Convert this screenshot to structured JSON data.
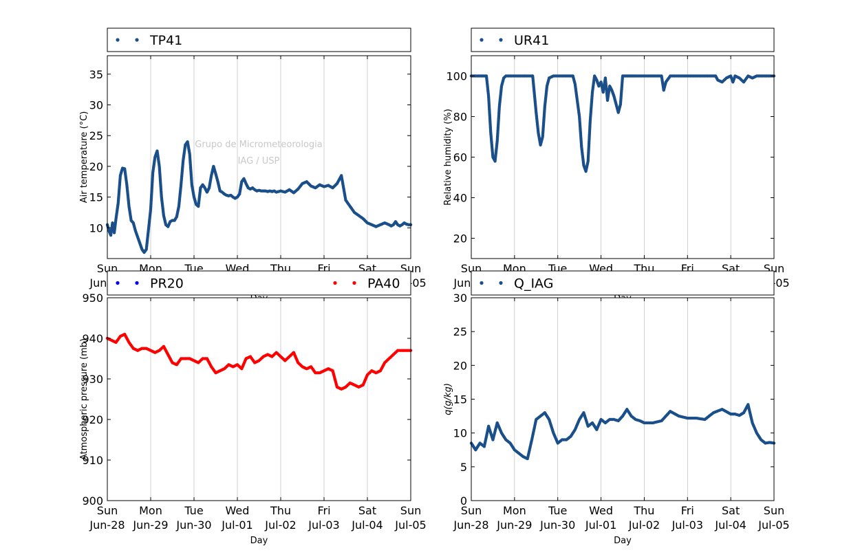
{
  "watermark": [
    "Grupo de Micrometeorologia",
    "IAG / USP"
  ],
  "x_ticks": {
    "days": [
      "Sun",
      "Mon",
      "Tue",
      "Wed",
      "Thu",
      "Fri",
      "Sat",
      "Sun"
    ],
    "dates": [
      "Jun-28",
      "Jun-29",
      "Jun-30",
      "Jul-01",
      "Jul-02",
      "Jul-03",
      "Jul-04",
      "Jul-05"
    ]
  },
  "colors": {
    "navy": "#1a4f8a",
    "blue": "#0000ff",
    "red": "#ff0000",
    "grid": "#b0b0b0"
  },
  "chart_data": [
    {
      "type": "scatter",
      "legend": [
        "TP41"
      ],
      "ylabel": "Air temperature (°C)",
      "xlabel": "Day",
      "ylim": [
        5,
        38
      ],
      "yticks": [
        10,
        15,
        20,
        25,
        30,
        35
      ],
      "grid": "vertical",
      "series": [
        {
          "name": "TP41",
          "color": "#1a4f8a",
          "x": [
            0,
            0.04,
            0.08,
            0.12,
            0.16,
            0.2,
            0.25,
            0.3,
            0.35,
            0.4,
            0.45,
            0.5,
            0.55,
            0.6,
            0.65,
            0.7,
            0.75,
            0.8,
            0.85,
            0.9,
            1.0,
            1.05,
            1.1,
            1.15,
            1.2,
            1.25,
            1.3,
            1.35,
            1.4,
            1.45,
            1.5,
            1.55,
            1.6,
            1.65,
            1.7,
            1.75,
            1.8,
            1.85,
            1.9,
            1.95,
            2.0,
            2.05,
            2.1,
            2.15,
            2.2,
            2.25,
            2.3,
            2.35,
            2.4,
            2.45,
            2.5,
            2.55,
            2.6,
            2.65,
            2.7,
            2.75,
            2.8,
            2.85,
            2.9,
            2.95,
            3.0,
            3.05,
            3.1,
            3.15,
            3.2,
            3.25,
            3.3,
            3.35,
            3.4,
            3.45,
            3.5,
            3.55,
            3.6,
            3.65,
            3.7,
            3.75,
            3.8,
            3.85,
            3.9,
            4.0,
            4.1,
            4.2,
            4.3,
            4.4,
            4.5,
            4.6,
            4.7,
            4.8,
            4.9,
            5.0,
            5.1,
            5.2,
            5.3,
            5.4,
            5.5,
            5.6,
            5.7,
            5.8,
            5.9,
            6.0,
            6.1,
            6.2,
            6.3,
            6.4,
            6.5,
            6.55,
            6.6,
            6.65,
            6.7,
            6.75,
            6.8,
            6.85,
            6.9,
            6.95,
            7.0
          ],
          "y": [
            10.5,
            9.5,
            8.8,
            10.8,
            9.2,
            11.5,
            14,
            18.5,
            19.7,
            19.6,
            17,
            13.5,
            11.2,
            10.8,
            9.5,
            8.5,
            7.5,
            6.5,
            6.0,
            6.5,
            13,
            19,
            21.5,
            22.5,
            20,
            15,
            12,
            10.5,
            10.2,
            11,
            11.2,
            11.2,
            11.8,
            13.5,
            17,
            21,
            23.5,
            24,
            22,
            17,
            15,
            13.8,
            13.5,
            16.5,
            17,
            16.5,
            15.8,
            16.5,
            18.5,
            20,
            18.8,
            17.5,
            16,
            15.8,
            15.5,
            15.3,
            15.2,
            15.3,
            15.0,
            14.8,
            15.0,
            15.5,
            17.5,
            18,
            17.2,
            16.5,
            16.3,
            16.5,
            16.2,
            16.0,
            16.1,
            16.0,
            16.0,
            16.0,
            15.9,
            16.0,
            15.9,
            16.0,
            15.8,
            16.0,
            15.8,
            16.2,
            15.7,
            16.3,
            17.2,
            17.5,
            16.8,
            16.5,
            17.0,
            16.7,
            16.9,
            16.5,
            17.2,
            18.5,
            14.5,
            13.5,
            12.5,
            12.0,
            11.5,
            10.8,
            10.5,
            10.2,
            10.5,
            10.8,
            10.5,
            10.3,
            10.5,
            11.0,
            10.5,
            10.3,
            10.5,
            10.8,
            10.6,
            10.5,
            10.5
          ]
        }
      ]
    },
    {
      "type": "scatter",
      "legend": [
        "UR41"
      ],
      "ylabel": "Relative humidity (%)",
      "xlabel": "Day",
      "ylim": [
        10,
        110
      ],
      "yticks": [
        20,
        40,
        60,
        80,
        100
      ],
      "grid": "vertical",
      "series": [
        {
          "name": "UR41",
          "color": "#1a4f8a",
          "x": [
            0,
            0.2,
            0.35,
            0.4,
            0.45,
            0.5,
            0.55,
            0.6,
            0.65,
            0.7,
            0.75,
            0.8,
            0.9,
            1.0,
            1.2,
            1.4,
            1.42,
            1.5,
            1.55,
            1.6,
            1.65,
            1.7,
            1.75,
            1.8,
            1.9,
            2.0,
            2.2,
            2.35,
            2.4,
            2.5,
            2.55,
            2.6,
            2.65,
            2.7,
            2.75,
            2.8,
            2.85,
            2.9,
            2.95,
            3.0,
            3.05,
            3.1,
            3.15,
            3.2,
            3.25,
            3.3,
            3.35,
            3.4,
            3.45,
            3.5,
            3.55,
            3.6,
            3.65,
            3.7,
            3.75,
            3.8,
            3.9,
            4.0,
            4.3,
            4.4,
            4.45,
            4.5,
            4.6,
            5.0,
            5.5,
            5.6,
            5.65,
            5.7,
            5.8,
            5.9,
            6.0,
            6.05,
            6.1,
            6.2,
            6.3,
            6.4,
            6.5,
            6.6,
            7.0
          ],
          "y": [
            100,
            100,
            100,
            90,
            72,
            60,
            58,
            68,
            85,
            95,
            99,
            100,
            100,
            100,
            100,
            100,
            100,
            82,
            72,
            66,
            70,
            85,
            95,
            99,
            100,
            100,
            100,
            100,
            96,
            80,
            65,
            56,
            53,
            58,
            78,
            92,
            100,
            98,
            95,
            97,
            92,
            99,
            88,
            95,
            93,
            90,
            86,
            82,
            86,
            100,
            100,
            100,
            100,
            100,
            100,
            100,
            100,
            100,
            100,
            100,
            93,
            97,
            100,
            100,
            100,
            100,
            100,
            98,
            97,
            99,
            100,
            97,
            100,
            99,
            97,
            100,
            99,
            100,
            100
          ]
        }
      ]
    },
    {
      "type": "scatter",
      "legend": [
        "PR20",
        "PA40"
      ],
      "ylabel": "Atmospheric pressure (mb)",
      "xlabel": "Day",
      "ylim": [
        900,
        950
      ],
      "yticks": [
        900,
        910,
        920,
        930,
        940,
        950
      ],
      "grid": "vertical",
      "series": [
        {
          "name": "PR20",
          "color": "#0000ff",
          "x": [],
          "y": []
        },
        {
          "name": "PA40",
          "color": "#ff0000",
          "x": [
            0,
            0.1,
            0.2,
            0.3,
            0.4,
            0.5,
            0.6,
            0.7,
            0.8,
            0.9,
            1.0,
            1.1,
            1.2,
            1.3,
            1.4,
            1.5,
            1.6,
            1.7,
            1.8,
            1.9,
            2.0,
            2.1,
            2.2,
            2.3,
            2.4,
            2.5,
            2.6,
            2.7,
            2.8,
            2.9,
            3.0,
            3.1,
            3.2,
            3.3,
            3.4,
            3.5,
            3.6,
            3.7,
            3.8,
            3.9,
            4.0,
            4.1,
            4.2,
            4.3,
            4.4,
            4.5,
            4.6,
            4.7,
            4.8,
            4.9,
            5.0,
            5.1,
            5.2,
            5.3,
            5.4,
            5.5,
            5.6,
            5.7,
            5.8,
            5.9,
            6.0,
            6.1,
            6.2,
            6.3,
            6.4,
            6.5,
            6.6,
            6.7,
            6.8,
            6.9,
            7.0
          ],
          "y": [
            940,
            939.5,
            939,
            940.5,
            941,
            939,
            937.5,
            937,
            937.5,
            937.5,
            937,
            936.5,
            937,
            938,
            936,
            934,
            933.5,
            935,
            935,
            935,
            934.5,
            934,
            935,
            935,
            933,
            931.5,
            932,
            932.5,
            933.5,
            933,
            933.5,
            932.5,
            935,
            935.5,
            934,
            934.5,
            935.5,
            936,
            935.5,
            936.5,
            935.5,
            934.5,
            935.5,
            936.5,
            934,
            933,
            932.5,
            933,
            931.5,
            931.5,
            932,
            932.5,
            932,
            928,
            927.5,
            928,
            929,
            928.5,
            928,
            928.5,
            931,
            932,
            931.5,
            932,
            934,
            935,
            936,
            937,
            937,
            937,
            937
          ]
        }
      ]
    },
    {
      "type": "scatter",
      "legend": [
        "Q_IAG"
      ],
      "ylabel": "q(g/kg)",
      "xlabel": "Day",
      "ylim": [
        0,
        30
      ],
      "yticks": [
        0,
        5,
        10,
        15,
        20,
        25,
        30
      ],
      "grid": "vertical",
      "series": [
        {
          "name": "Q_IAG",
          "color": "#1a4f8a",
          "x": [
            0,
            0.1,
            0.2,
            0.3,
            0.4,
            0.5,
            0.6,
            0.7,
            0.8,
            0.9,
            1.0,
            1.1,
            1.2,
            1.3,
            1.4,
            1.5,
            1.6,
            1.7,
            1.8,
            1.9,
            2.0,
            2.1,
            2.2,
            2.3,
            2.4,
            2.5,
            2.6,
            2.7,
            2.8,
            2.9,
            3.0,
            3.1,
            3.2,
            3.3,
            3.4,
            3.5,
            3.6,
            3.7,
            3.8,
            3.9,
            4.0,
            4.2,
            4.4,
            4.6,
            4.8,
            5.0,
            5.2,
            5.4,
            5.6,
            5.8,
            6.0,
            6.1,
            6.2,
            6.3,
            6.4,
            6.5,
            6.6,
            6.7,
            6.8,
            6.9,
            7.0
          ],
          "y": [
            8.5,
            7.5,
            8.5,
            8.0,
            11.0,
            9.0,
            11.5,
            10.0,
            9.0,
            8.5,
            7.5,
            7.0,
            6.5,
            6.2,
            9.0,
            12.0,
            12.5,
            13.0,
            12.0,
            10.0,
            8.5,
            9.0,
            9.0,
            9.5,
            10.5,
            12.0,
            13.0,
            11.0,
            11.5,
            10.5,
            12.0,
            11.5,
            12.0,
            12.0,
            11.8,
            12.5,
            13.5,
            12.5,
            12.0,
            11.8,
            11.5,
            11.5,
            11.8,
            13.2,
            12.5,
            12.2,
            12.2,
            12.0,
            13.0,
            13.5,
            12.8,
            12.8,
            12.6,
            13.0,
            14.2,
            11.5,
            10.0,
            9.0,
            8.5,
            8.6,
            8.5
          ]
        }
      ]
    }
  ]
}
